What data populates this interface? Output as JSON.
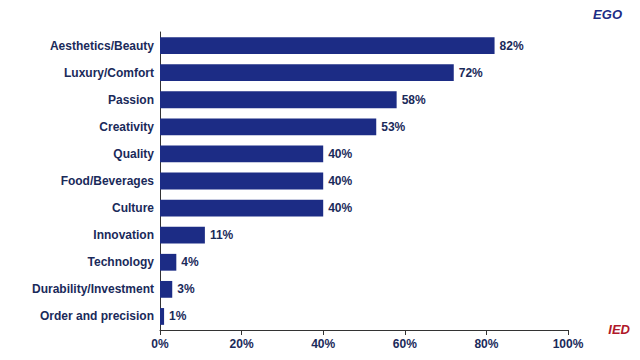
{
  "chart_data": {
    "type": "bar",
    "orientation": "horizontal",
    "categories": [
      "Aesthetics/Beauty",
      "Luxury/Comfort",
      "Passion",
      "Creativity",
      "Quality",
      "Food/Beverages",
      "Culture",
      "Innovation",
      "Technology",
      "Durability/Investment",
      "Order and precision"
    ],
    "values": [
      82,
      72,
      58,
      53,
      40,
      40,
      40,
      11,
      4,
      3,
      1
    ],
    "value_labels": [
      "82%",
      "72%",
      "58%",
      "53%",
      "40%",
      "40%",
      "40%",
      "11%",
      "4%",
      "3%",
      "1%"
    ],
    "data_labels": true,
    "color": "#1c2c85",
    "xlim": [
      0,
      100
    ],
    "xticks": [
      {
        "value": 0,
        "label": "0%"
      },
      {
        "value": 20,
        "label": "20%"
      },
      {
        "value": 40,
        "label": "40%"
      },
      {
        "value": 60,
        "label": "60%"
      },
      {
        "value": 80,
        "label": "80%"
      },
      {
        "value": 100,
        "label": "100%"
      }
    ],
    "grid": false,
    "annotations": [
      "EGO",
      "IED"
    ]
  }
}
